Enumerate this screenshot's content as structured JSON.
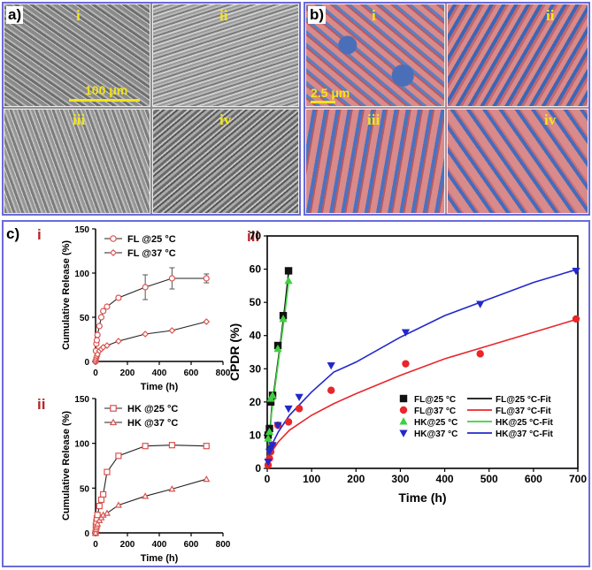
{
  "panel_a": {
    "letter": "a)",
    "tiles": [
      {
        "label": "i"
      },
      {
        "label": "ii"
      },
      {
        "label": "iii"
      },
      {
        "label": "iv"
      }
    ],
    "scale_bar": "100 μm",
    "label_color": "#f2e51a"
  },
  "panel_b": {
    "letter": "b)",
    "tiles": [
      {
        "label": "i"
      },
      {
        "label": "ii"
      },
      {
        "label": "iii"
      },
      {
        "label": "iv"
      }
    ],
    "scale_bar": "2.5 μm",
    "label_color": "#f2e51a"
  },
  "panel_c": {
    "letter": "c)",
    "sub_label_color": "#b3262a"
  },
  "chart_data": [
    {
      "id": "c-i",
      "panel_label": "i",
      "type": "line",
      "xlabel": "Time (h)",
      "ylabel": "Cumulative Release (%)",
      "xlim": [
        0,
        800
      ],
      "ylim": [
        0,
        150
      ],
      "xticks": [
        "0",
        "200",
        "400",
        "600",
        "800"
      ],
      "yticks": [
        "0",
        "50",
        "100",
        "150"
      ],
      "legend_position": "top-left",
      "series": [
        {
          "name": "FL @25 °C",
          "marker": "circle",
          "color": "#d9534f",
          "x": [
            0,
            2,
            5,
            8,
            12,
            24,
            36,
            48,
            72,
            144,
            312,
            480,
            696
          ],
          "y": [
            0,
            12,
            20,
            24,
            30,
            40,
            50,
            57,
            62,
            72,
            84,
            94,
            94
          ],
          "err": [
            0,
            0,
            0,
            0,
            0,
            0,
            0,
            0,
            0,
            2,
            14,
            12,
            5
          ]
        },
        {
          "name": "FL @37 °C",
          "marker": "diamond",
          "color": "#d9534f",
          "x": [
            0,
            2,
            5,
            8,
            12,
            24,
            36,
            48,
            72,
            144,
            312,
            480,
            696
          ],
          "y": [
            0,
            2,
            4,
            6,
            8,
            12,
            14,
            16,
            18,
            23,
            31,
            35,
            45
          ]
        }
      ]
    },
    {
      "id": "c-ii",
      "panel_label": "ii",
      "type": "line",
      "xlabel": "Time (h)",
      "ylabel": "Cumulative Release (%)",
      "xlim": [
        0,
        800
      ],
      "ylim": [
        0,
        150
      ],
      "xticks": [
        "0",
        "200",
        "400",
        "600",
        "800"
      ],
      "yticks": [
        "0",
        "50",
        "100",
        "150"
      ],
      "legend_position": "top-left",
      "series": [
        {
          "name": "HK @25 °C",
          "marker": "square",
          "color": "#d9534f",
          "x": [
            0,
            2,
            5,
            8,
            12,
            24,
            36,
            48,
            72,
            144,
            312,
            480,
            696
          ],
          "y": [
            0,
            8,
            12,
            16,
            20,
            30,
            37,
            43,
            68,
            86,
            97,
            98,
            97
          ]
        },
        {
          "name": "HK @37 °C",
          "marker": "triangle",
          "color": "#d9534f",
          "x": [
            0,
            2,
            5,
            8,
            12,
            24,
            36,
            48,
            72,
            144,
            312,
            480,
            696
          ],
          "y": [
            0,
            4,
            6,
            8,
            10,
            14,
            17,
            20,
            22,
            31,
            41,
            49,
            60
          ]
        }
      ]
    },
    {
      "id": "c-iii",
      "panel_label": "iii",
      "type": "scatter",
      "xlabel": "Time (h)",
      "ylabel": "CPDR (%)",
      "xlim": [
        0,
        700
      ],
      "ylim": [
        0,
        70
      ],
      "xticks": [
        "0",
        "100",
        "200",
        "300",
        "400",
        "500",
        "600",
        "700"
      ],
      "yticks": [
        "0",
        "10",
        "20",
        "30",
        "40",
        "50",
        "60",
        "70"
      ],
      "legend_position": "bottom-right",
      "series": [
        {
          "name": "FL@25 °C",
          "marker": "square",
          "color": "#111111",
          "x": [
            2,
            5,
            8,
            12,
            24,
            36,
            48
          ],
          "y": [
            10,
            12,
            20,
            22,
            37,
            46,
            59.5
          ]
        },
        {
          "name": "FL@37 °C",
          "marker": "circle",
          "color": "#e8262b",
          "x": [
            2,
            5,
            8,
            12,
            24,
            48,
            72,
            144,
            312,
            480,
            696
          ],
          "y": [
            1,
            3,
            5,
            7,
            13,
            14,
            18,
            23.5,
            31.5,
            34.5,
            45
          ]
        },
        {
          "name": "HK@25 °C",
          "marker": "triangle",
          "color": "#3dd13d",
          "x": [
            2,
            5,
            8,
            12,
            24,
            36,
            48
          ],
          "y": [
            9,
            11,
            21,
            22,
            36,
            45,
            56.5
          ]
        },
        {
          "name": "HK@37 °C",
          "marker": "triangle-down",
          "color": "#2228c9",
          "x": [
            2,
            5,
            8,
            12,
            24,
            48,
            72,
            144,
            312,
            480,
            696
          ],
          "y": [
            2,
            5,
            6,
            7,
            13,
            18,
            21.5,
            31,
            41,
            49.5,
            59.5
          ]
        }
      ],
      "fits": [
        {
          "name": "FL@25 °C-Fit",
          "color": "#111111",
          "x": [
            0,
            10,
            20,
            30,
            40,
            48
          ],
          "y": [
            0,
            18,
            28,
            38,
            49,
            59
          ]
        },
        {
          "name": "FL@37 °C-Fit",
          "color": "#e8262b",
          "x": [
            0,
            10,
            25,
            50,
            100,
            150,
            200,
            300,
            400,
            500,
            600,
            700
          ],
          "y": [
            0,
            5,
            8,
            11.5,
            16,
            19.5,
            22.5,
            28,
            33,
            37,
            41,
            45
          ]
        },
        {
          "name": "HK@25 °C-Fit",
          "color": "#3dd13d",
          "x": [
            0,
            10,
            20,
            30,
            40,
            48
          ],
          "y": [
            0,
            17,
            27,
            37,
            47,
            56
          ]
        },
        {
          "name": "HK@37 °C-Fit",
          "color": "#2228c9",
          "x": [
            0,
            10,
            25,
            50,
            100,
            150,
            200,
            300,
            400,
            500,
            600,
            700
          ],
          "y": [
            0,
            7,
            11,
            16,
            23,
            29,
            32,
            39.5,
            46,
            51,
            56,
            60
          ]
        }
      ]
    }
  ]
}
